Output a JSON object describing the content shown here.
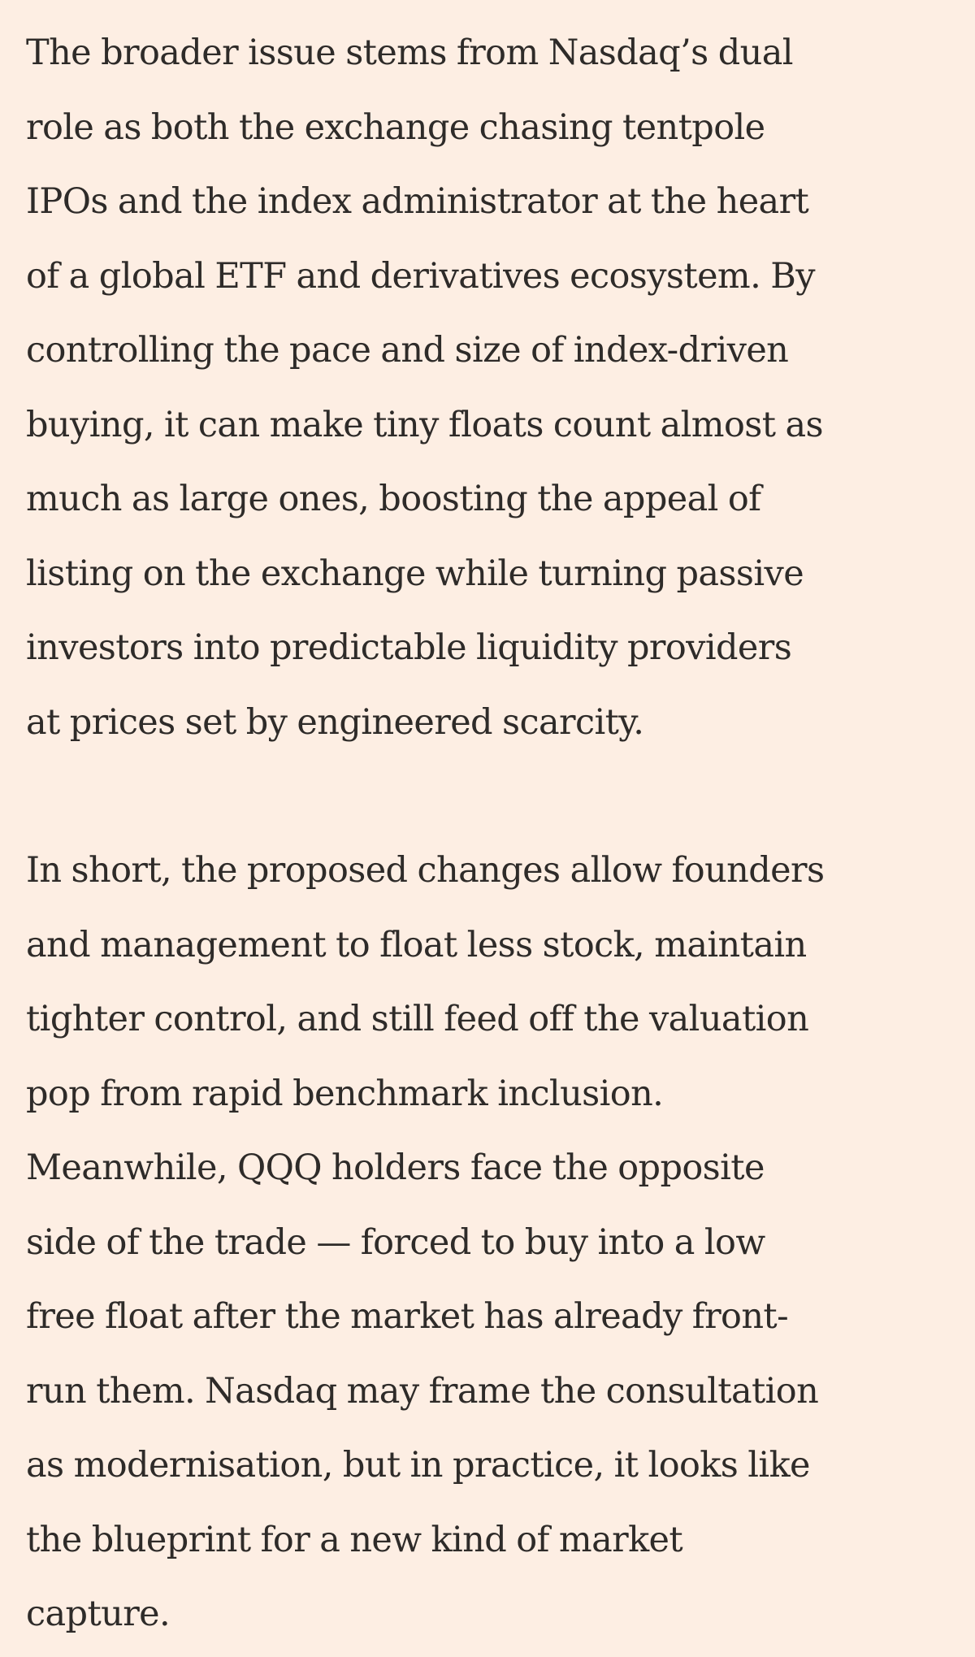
{
  "article": {
    "paragraphs": [
      {
        "lines": [
          "The broader issue stems from Nasdaq’s dual",
          "role as both the exchange chasing tentpole",
          "IPOs and the index administrator at the heart",
          "of a global ETF and derivatives ecosystem. By",
          "controlling the pace and size of index-driven",
          "buying, it can make tiny floats count almost as",
          "much as large ones, boosting the appeal of",
          "listing on the exchange while turning passive",
          "investors into predictable liquidity providers",
          "at prices set by engineered scarcity."
        ]
      },
      {
        "lines": [
          "In short, the proposed changes allow founders",
          "and management to float less stock, maintain",
          "tighter control, and still feed off the valuation",
          "pop from rapid benchmark inclusion.",
          "Meanwhile, QQQ holders face the opposite",
          "side of the trade — forced to buy into a low",
          "free float after the market has already front-",
          "run them. Nasdaq may frame the consultation",
          "as modernisation, but in practice, it looks like",
          "the blueprint for a new kind of market",
          "capture."
        ]
      }
    ]
  },
  "colors": {
    "background": "#fdeee3",
    "text": "#2e2b29"
  }
}
